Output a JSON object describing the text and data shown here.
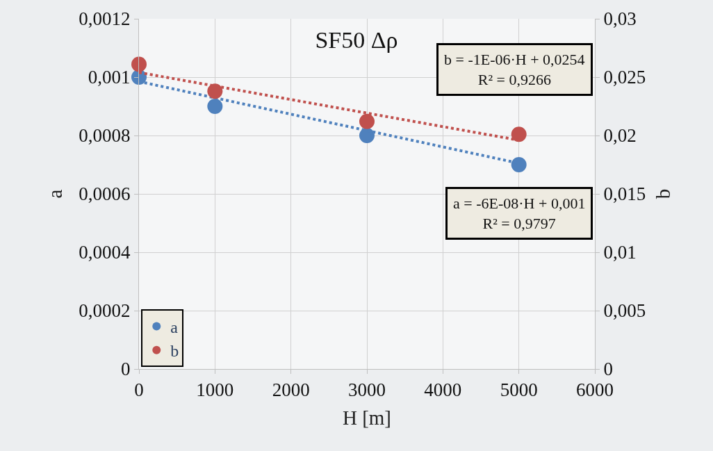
{
  "chart_data": {
    "type": "scatter",
    "title": "SF50 Δρ",
    "xlabel": "H [m]",
    "ylabel": "a",
    "y2label": "b",
    "xlim": [
      0,
      6000
    ],
    "xticks": [
      0,
      1000,
      2000,
      3000,
      4000,
      5000,
      6000
    ],
    "ylim": [
      0,
      0.0012
    ],
    "yticks": [
      {
        "value": 0,
        "label": "0"
      },
      {
        "value": 0.0002,
        "label": "0,0002"
      },
      {
        "value": 0.0004,
        "label": "0,0004"
      },
      {
        "value": 0.0006,
        "label": "0,0006"
      },
      {
        "value": 0.0008,
        "label": "0,0008"
      },
      {
        "value": 0.001,
        "label": "0,001"
      },
      {
        "value": 0.0012,
        "label": "0,0012"
      }
    ],
    "y2lim": [
      0,
      0.03
    ],
    "y2ticks": [
      {
        "value": 0,
        "label": "0"
      },
      {
        "value": 0.005,
        "label": "0,005"
      },
      {
        "value": 0.01,
        "label": "0,01"
      },
      {
        "value": 0.015,
        "label": "0,015"
      },
      {
        "value": 0.02,
        "label": "0,02"
      },
      {
        "value": 0.025,
        "label": "0,025"
      },
      {
        "value": 0.03,
        "label": "0,03"
      }
    ],
    "grid": true,
    "legend": "bottom left",
    "marker": "circle",
    "series": [
      {
        "name": "a",
        "color": "#4f81bd",
        "x": [
          0,
          1000,
          3000,
          5000
        ],
        "values": [
          0.001,
          0.0009,
          0.0008,
          0.0007
        ]
      },
      {
        "name": "b",
        "color": "#c0504d",
        "axis": "y2",
        "x": [
          0,
          1000,
          3000,
          5000
        ],
        "values": [
          0.0261,
          0.0238,
          0.0212,
          0.0201
        ]
      },
      {
        "type": "line",
        "color": "#4f81bd",
        "line_style": "dotted",
        "marker": "none",
        "x": [
          0,
          5000
        ],
        "values": [
          0.000985,
          0.000705
        ]
      },
      {
        "type": "line",
        "color": "#c0504d",
        "line_style": "dotted",
        "marker": "none",
        "axis": "y2",
        "x": [
          0,
          5000
        ],
        "values": [
          0.0254,
          0.0196
        ]
      }
    ],
    "annotations": [
      "b = -1E-06·H + 0,0254\nR² = 0,9266",
      "a = -6E-08·H + 0,001\nR² = 0,9797"
    ]
  }
}
